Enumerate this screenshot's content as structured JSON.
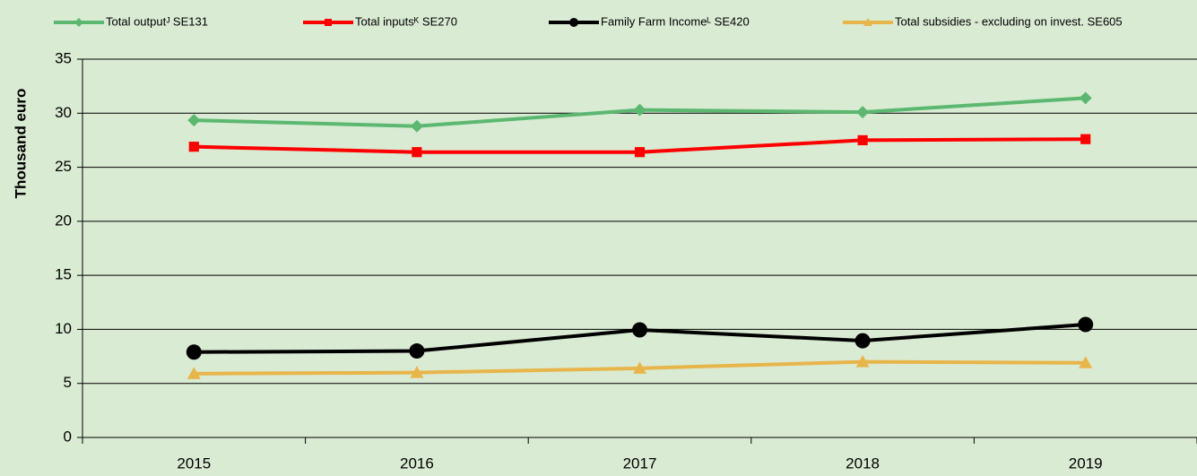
{
  "chart_data": {
    "type": "line",
    "y_label": "Thousand euro",
    "categories": [
      "2015",
      "2016",
      "2017",
      "2018",
      "2019"
    ],
    "series": [
      {
        "name": "Total outputᴶ SE131",
        "color": "#5cb870",
        "marker": "diamond",
        "values": [
          29.35,
          28.8,
          30.3,
          30.1,
          31.4
        ]
      },
      {
        "name": "Total inputsᴷ SE270",
        "color": "#ff0000",
        "marker": "square",
        "values": [
          26.9,
          26.4,
          26.4,
          27.5,
          27.6
        ]
      },
      {
        "name": "Family Farm Incomeᴸ SE420",
        "color": "#000000",
        "marker": "circle",
        "values": [
          7.9,
          8.0,
          9.95,
          8.95,
          10.45
        ]
      },
      {
        "name": "Total subsidies - excluding on invest. SE605",
        "color": "#e8b54a",
        "marker": "triangle",
        "values": [
          5.9,
          6.0,
          6.4,
          7.0,
          6.9
        ]
      }
    ],
    "ylim": [
      0,
      35
    ],
    "yticks": [
      0,
      5,
      10,
      15,
      20,
      25,
      30,
      35
    ],
    "grid": true,
    "legend": "top"
  }
}
